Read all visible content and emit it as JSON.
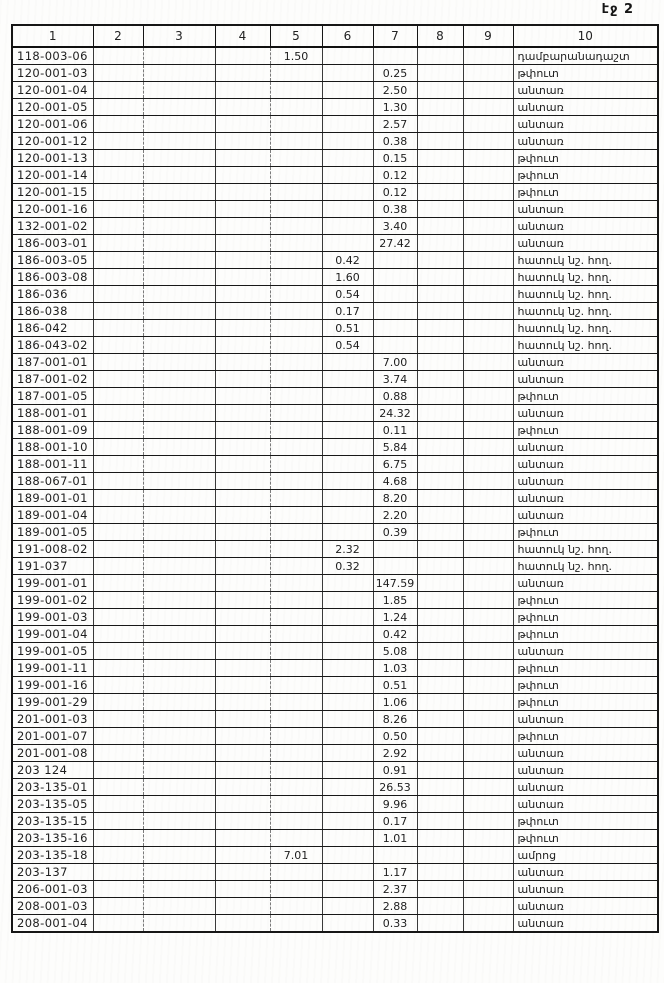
{
  "page": {
    "label": "էջ 2"
  },
  "table": {
    "headers": [
      "1",
      "2",
      "3",
      "4",
      "5",
      "6",
      "7",
      "8",
      "9",
      "10"
    ],
    "land_types": {
      "forest": "անտառ",
      "shrub": "թփուտ",
      "special": "հատուկ նշ. հող.",
      "cemetery": "դամբարանադաշտ",
      "fortress": "ամրոց"
    },
    "rows": [
      [
        "118-003-06",
        "",
        "",
        "",
        "1.50",
        "",
        "",
        "",
        "",
        "դամբարանադաշտ"
      ],
      [
        "120-001-03",
        "",
        "",
        "",
        "",
        "",
        "0.25",
        "",
        "",
        "թփուտ"
      ],
      [
        "120-001-04",
        "",
        "",
        "",
        "",
        "",
        "2.50",
        "",
        "",
        "անտառ"
      ],
      [
        "120-001-05",
        "",
        "",
        "",
        "",
        "",
        "1.30",
        "",
        "",
        "անտառ"
      ],
      [
        "120-001-06",
        "",
        "",
        "",
        "",
        "",
        "2.57",
        "",
        "",
        "անտառ"
      ],
      [
        "120-001-12",
        "",
        "",
        "",
        "",
        "",
        "0.38",
        "",
        "",
        "անտառ"
      ],
      [
        "120-001-13",
        "",
        "",
        "",
        "",
        "",
        "0.15",
        "",
        "",
        "թփուտ"
      ],
      [
        "120-001-14",
        "",
        "",
        "",
        "",
        "",
        "0.12",
        "",
        "",
        "թփուտ"
      ],
      [
        "120-001-15",
        "",
        "",
        "",
        "",
        "",
        "0.12",
        "",
        "",
        "թփուտ"
      ],
      [
        "120-001-16",
        "",
        "",
        "",
        "",
        "",
        "0.38",
        "",
        "",
        "անտառ"
      ],
      [
        "132-001-02",
        "",
        "",
        "",
        "",
        "",
        "3.40",
        "",
        "",
        "անտառ"
      ],
      [
        "186-003-01",
        "",
        "",
        "",
        "",
        "",
        "27.42",
        "",
        "",
        "անտառ"
      ],
      [
        "186-003-05",
        "",
        "",
        "",
        "",
        "0.42",
        "",
        "",
        "",
        "հատուկ նշ. հող."
      ],
      [
        "186-003-08",
        "",
        "",
        "",
        "",
        "1.60",
        "",
        "",
        "",
        "հատուկ նշ. հող."
      ],
      [
        "186-036",
        "",
        "",
        "",
        "",
        "0.54",
        "",
        "",
        "",
        "հատուկ նշ. հող."
      ],
      [
        "186-038",
        "",
        "",
        "",
        "",
        "0.17",
        "",
        "",
        "",
        "հատուկ նշ. հող."
      ],
      [
        "186-042",
        "",
        "",
        "",
        "",
        "0.51",
        "",
        "",
        "",
        "հատուկ նշ. հող."
      ],
      [
        "186-043-02",
        "",
        "",
        "",
        "",
        "0.54",
        "",
        "",
        "",
        "հատուկ նշ. հող."
      ],
      [
        "187-001-01",
        "",
        "",
        "",
        "",
        "",
        "7.00",
        "",
        "",
        "անտառ"
      ],
      [
        "187-001-02",
        "",
        "",
        "",
        "",
        "",
        "3.74",
        "",
        "",
        "անտառ"
      ],
      [
        "187-001-05",
        "",
        "",
        "",
        "",
        "",
        "0.88",
        "",
        "",
        "թփուտ"
      ],
      [
        "188-001-01",
        "",
        "",
        "",
        "",
        "",
        "24.32",
        "",
        "",
        "անտառ"
      ],
      [
        "188-001-09",
        "",
        "",
        "",
        "",
        "",
        "0.11",
        "",
        "",
        "թփուտ"
      ],
      [
        "188-001-10",
        "",
        "",
        "",
        "",
        "",
        "5.84",
        "",
        "",
        "անտառ"
      ],
      [
        "188-001-11",
        "",
        "",
        "",
        "",
        "",
        "6.75",
        "",
        "",
        "անտառ"
      ],
      [
        "188-067-01",
        "",
        "",
        "",
        "",
        "",
        "4.68",
        "",
        "",
        "անտառ"
      ],
      [
        "189-001-01",
        "",
        "",
        "",
        "",
        "",
        "8.20",
        "",
        "",
        "անտառ"
      ],
      [
        "189-001-04",
        "",
        "",
        "",
        "",
        "",
        "2.20",
        "",
        "",
        "անտառ"
      ],
      [
        "189-001-05",
        "",
        "",
        "",
        "",
        "",
        "0.39",
        "",
        "",
        "թփուտ"
      ],
      [
        "191-008-02",
        "",
        "",
        "",
        "",
        "2.32",
        "",
        "",
        "",
        "հատուկ նշ. հող."
      ],
      [
        "191-037",
        "",
        "",
        "",
        "",
        "0.32",
        "",
        "",
        "",
        "հատուկ նշ. հող."
      ],
      [
        "199-001-01",
        "",
        "",
        "",
        "",
        "",
        "147.59",
        "",
        "",
        "անտառ"
      ],
      [
        "199-001-02",
        "",
        "",
        "",
        "",
        "",
        "1.85",
        "",
        "",
        "թփուտ"
      ],
      [
        "199-001-03",
        "",
        "",
        "",
        "",
        "",
        "1.24",
        "",
        "",
        "թփուտ"
      ],
      [
        "199-001-04",
        "",
        "",
        "",
        "",
        "",
        "0.42",
        "",
        "",
        "թփուտ"
      ],
      [
        "199-001-05",
        "",
        "",
        "",
        "",
        "",
        "5.08",
        "",
        "",
        "անտառ"
      ],
      [
        "199-001-11",
        "",
        "",
        "",
        "",
        "",
        "1.03",
        "",
        "",
        "թփուտ"
      ],
      [
        "199-001-16",
        "",
        "",
        "",
        "",
        "",
        "0.51",
        "",
        "",
        "թփուտ"
      ],
      [
        "199-001-29",
        "",
        "",
        "",
        "",
        "",
        "1.06",
        "",
        "",
        "թփուտ"
      ],
      [
        "201-001-03",
        "",
        "",
        "",
        "",
        "",
        "8.26",
        "",
        "",
        "անտառ"
      ],
      [
        "201-001-07",
        "",
        "",
        "",
        "",
        "",
        "0.50",
        "",
        "",
        "թփուտ"
      ],
      [
        "201-001-08",
        "",
        "",
        "",
        "",
        "",
        "2.92",
        "",
        "",
        "անտառ"
      ],
      [
        "203 124",
        "",
        "",
        "",
        "",
        "",
        "0.91",
        "",
        "",
        "անտառ"
      ],
      [
        "203-135-01",
        "",
        "",
        "",
        "",
        "",
        "26.53",
        "",
        "",
        "անտառ"
      ],
      [
        "203-135-05",
        "",
        "",
        "",
        "",
        "",
        "9.96",
        "",
        "",
        "անտառ"
      ],
      [
        "203-135-15",
        "",
        "",
        "",
        "",
        "",
        "0.17",
        "",
        "",
        "թփուտ"
      ],
      [
        "203-135-16",
        "",
        "",
        "",
        "",
        "",
        "1.01",
        "",
        "",
        "թփուտ"
      ],
      [
        "203-135-18",
        "",
        "",
        "",
        "7.01",
        "",
        "",
        "",
        "",
        "ամրոց"
      ],
      [
        "203-137",
        "",
        "",
        "",
        "",
        "",
        "1.17",
        "",
        "",
        "անտառ"
      ],
      [
        "206-001-03",
        "",
        "",
        "",
        "",
        "",
        "2.37",
        "",
        "",
        "անտառ"
      ],
      [
        "208-001-03",
        "",
        "",
        "",
        "",
        "",
        "2.88",
        "",
        "",
        "անտառ"
      ],
      [
        "208-001-04",
        "",
        "",
        "",
        "",
        "",
        "0.33",
        "",
        "",
        "անտառ"
      ]
    ]
  }
}
